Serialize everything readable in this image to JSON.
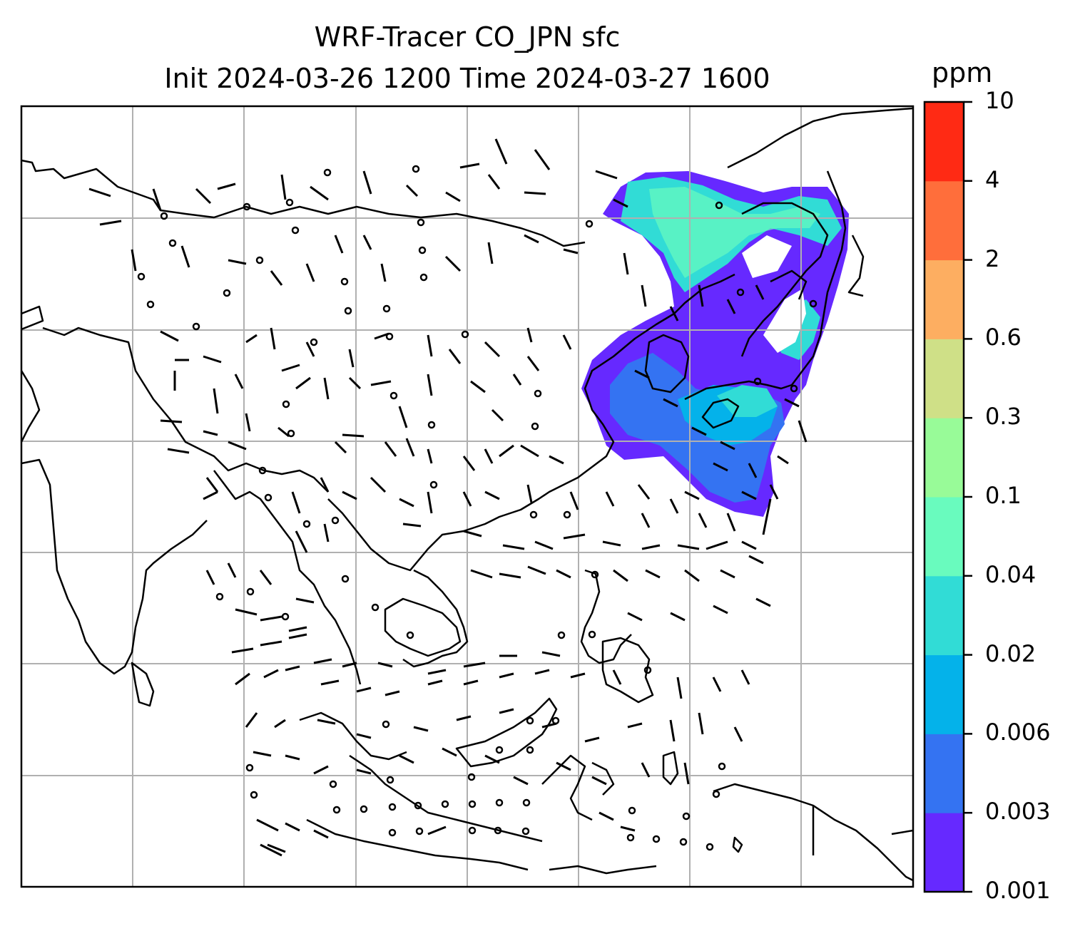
{
  "title": {
    "line1": "WRF-Tracer CO_JPN sfc",
    "line2": "Init 2024-03-26 1200 Time 2024-03-27 1600"
  },
  "colorbar": {
    "unit": "ppm",
    "levels": [
      "0.001",
      "0.003",
      "0.006",
      "0.02",
      "0.04",
      "0.1",
      "0.3",
      "0.6",
      "2",
      "4",
      "10"
    ],
    "colors": [
      "#6629ff",
      "#3473f2",
      "#04b2ea",
      "#31dcd6",
      "#69fbbe",
      "#98fb98",
      "#cfe087",
      "#fdae61",
      "#ff6e3b",
      "#ff2a14"
    ]
  },
  "map": {
    "background": "#ffffff",
    "gridline_color": "#b0b0b0",
    "coastline_color": "#000000",
    "wind_barbs": true,
    "tracer_field": "CO_JPN"
  }
}
